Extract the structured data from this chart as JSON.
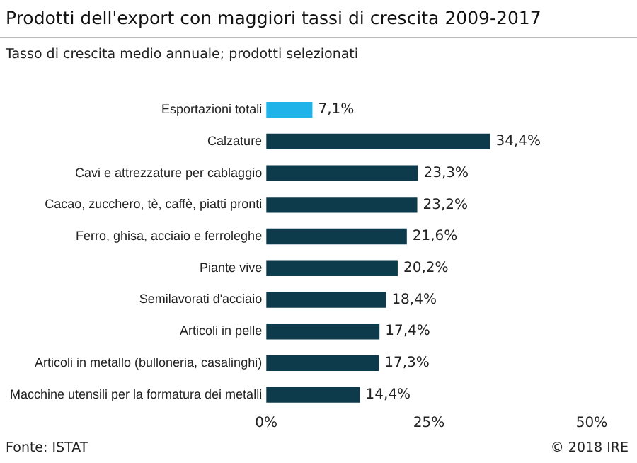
{
  "chart_data": {
    "type": "bar",
    "orientation": "horizontal",
    "title": "Prodotti dell'export con maggiori tassi di crescita 2009-2017",
    "subtitle": "Tasso di crescita medio annuale; prodotti selezionati",
    "categories": [
      "Esportazioni totali",
      "Calzature",
      "Cavi e attrezzature per cablaggio",
      "Cacao, zucchero, tè, caffè, piatti pronti",
      "Ferro, ghisa, acciaio e ferroleghe",
      "Piante vive",
      "Semilavorati d'acciaio",
      "Articoli in pelle",
      "Articoli in metallo (bulloneria, casalinghi)",
      "Macchine utensili per la formatura dei metalli"
    ],
    "values": [
      7.1,
      34.4,
      23.3,
      23.2,
      21.6,
      20.2,
      18.4,
      17.4,
      17.3,
      14.4
    ],
    "colors": [
      "#1fb3ea",
      "#0d3b4c",
      "#0d3b4c",
      "#0d3b4c",
      "#0d3b4c",
      "#0d3b4c",
      "#0d3b4c",
      "#0d3b4c",
      "#0d3b4c",
      "#0d3b4c"
    ],
    "value_labels": [
      "7,1%",
      "34,4%",
      "23,3%",
      "23,2%",
      "21,6%",
      "20,2%",
      "18,4%",
      "17,4%",
      "17,3%",
      "14,4%"
    ],
    "xlim": [
      0,
      50
    ],
    "xticks": [
      {
        "value": 0,
        "label": "0%"
      },
      {
        "value": 25,
        "label": "25%"
      },
      {
        "value": 50,
        "label": "50%"
      }
    ],
    "annotations": [
      "Fonte: ISTAT",
      "© 2018 IRE"
    ]
  }
}
